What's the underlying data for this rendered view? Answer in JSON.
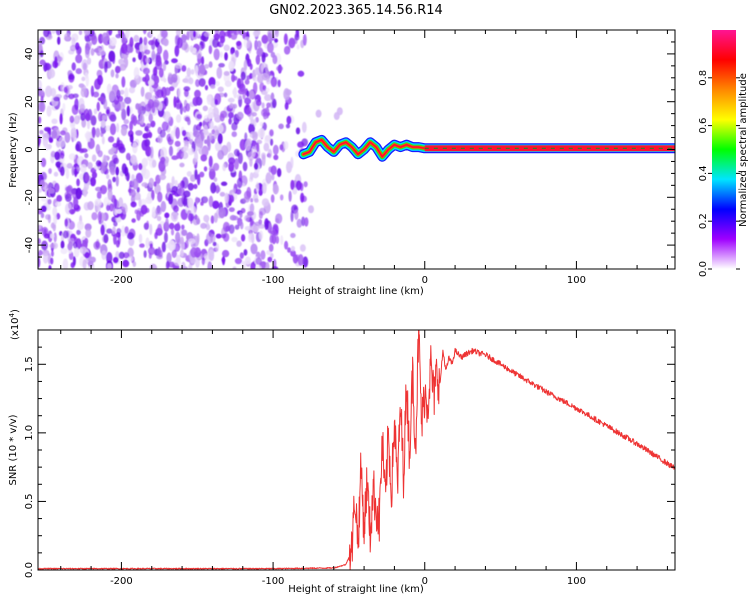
{
  "title": "GN02.2023.365.14.56.R14",
  "chart_data": [
    {
      "type": "heatmap",
      "xlabel": "Height of straight line (km)",
      "ylabel": "Frequency (Hz)",
      "xlim": [
        -255,
        165
      ],
      "ylim": [
        -50,
        50
      ],
      "xticks": [
        -200,
        -100,
        0,
        100
      ],
      "xtick_labels": [
        "-200",
        "-100",
        "0",
        "100"
      ],
      "yticks": [
        -40,
        -20,
        0,
        20,
        40
      ],
      "ytick_labels": [
        "-40",
        "-20",
        "0",
        "20",
        "40"
      ],
      "noise_region_x": [
        -255,
        -78
      ],
      "trace": {
        "x": [
          -80,
          -76,
          -72,
          -68,
          -64,
          -60,
          -56,
          -52,
          -48,
          -44,
          -40,
          -36,
          -32,
          -28,
          -24,
          -20,
          -16,
          -12,
          -8,
          -4,
          0,
          40,
          80,
          120,
          165
        ],
        "y": [
          -2,
          -1,
          3,
          4,
          1,
          -1,
          2,
          3,
          1,
          -2,
          0,
          3,
          1,
          -3,
          0,
          2,
          1,
          2,
          1,
          1,
          0.5,
          0.5,
          0.5,
          0.5,
          0.5
        ]
      },
      "colorbar": {
        "label": "Normalized spectral amplitude",
        "range": [
          0,
          1
        ],
        "ticks": [
          0.0,
          0.2,
          0.4,
          0.6,
          0.8
        ],
        "tick_labels": [
          "0.0",
          "0.2",
          "0.4",
          "0.6",
          "0.8"
        ],
        "colors": [
          "#ffffff",
          "#9f00ff",
          "#0000ff",
          "#00e5ff",
          "#00ff00",
          "#ffff00",
          "#ff8800",
          "#ff0000",
          "#ff1493"
        ]
      }
    },
    {
      "type": "line",
      "xlabel": "Height of straight line (km)",
      "ylabel": "SNR (10 * v/v)",
      "y_multiplier": "(x10",
      "y_multiplier_exp": "4",
      "y_multiplier_close": ")",
      "xlim": [
        -255,
        165
      ],
      "ylim": [
        0,
        1.75
      ],
      "xticks": [
        -200,
        -100,
        0,
        100
      ],
      "xtick_labels": [
        "-200",
        "-100",
        "0",
        "100"
      ],
      "yticks": [
        0.0,
        0.5,
        1.0,
        1.5
      ],
      "ytick_labels": [
        "0.0",
        "0.5",
        "1.0",
        "1.5"
      ],
      "color": "#ee3333",
      "series": [
        {
          "x": [
            -255,
            -200,
            -100,
            -60,
            -52,
            -48,
            -46,
            -44,
            -42,
            -40,
            -38,
            -36,
            -34,
            -32,
            -30,
            -28,
            -26,
            -24,
            -22,
            -20,
            -18,
            -16,
            -14,
            -12,
            -10,
            -8,
            -6,
            -4,
            -2,
            0,
            2,
            4,
            6,
            8,
            10,
            12,
            14,
            16,
            18,
            20,
            24,
            28,
            32,
            36,
            40,
            50,
            60,
            80,
            100,
            120,
            140,
            165
          ],
          "y": [
            0.01,
            0.01,
            0.01,
            0.015,
            0.04,
            0.15,
            0.55,
            0.2,
            0.75,
            0.3,
            0.65,
            0.25,
            0.6,
            0.45,
            0.35,
            0.95,
            0.5,
            1.0,
            0.55,
            1.1,
            0.6,
            1.2,
            0.7,
            1.35,
            0.85,
            1.45,
            0.9,
            1.75,
            1.05,
            1.3,
            1.2,
            1.5,
            1.25,
            1.45,
            1.35,
            1.6,
            1.45,
            1.55,
            1.5,
            1.6,
            1.55,
            1.58,
            1.6,
            1.58,
            1.57,
            1.5,
            1.43,
            1.3,
            1.18,
            1.05,
            0.92,
            0.74
          ]
        }
      ]
    }
  ]
}
